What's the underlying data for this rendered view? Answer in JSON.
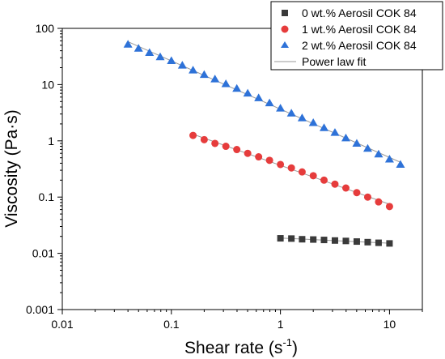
{
  "chart_data": {
    "type": "scatter",
    "title": "",
    "xlabel": "Shear rate (s⁻¹)",
    "xlabel_main": "Shear rate (s",
    "xlabel_sup": "-1",
    "xlabel_tail": ")",
    "ylabel": "Viscosity (Pa·s)",
    "xscale": "log",
    "yscale": "log",
    "xlim": [
      0.01,
      20
    ],
    "ylim": [
      0.001,
      100
    ],
    "xticks": [
      0.01,
      0.1,
      1,
      10
    ],
    "xtick_labels": [
      "0.01",
      "0.1",
      "1",
      "10"
    ],
    "yticks": [
      0.001,
      0.01,
      0.1,
      1,
      10,
      100
    ],
    "ytick_labels": [
      "0.001",
      "0.01",
      "0.1",
      "1",
      "10",
      "100"
    ],
    "grid": false,
    "legend_position": "top-right",
    "series": [
      {
        "name": "0 wt.% Aerosil COK 84",
        "marker": "square",
        "color": "#3a3a3a",
        "x": [
          1.0,
          1.26,
          1.58,
          2.0,
          2.51,
          3.16,
          3.98,
          5.01,
          6.31,
          7.94,
          10.0
        ],
        "y": [
          0.0185,
          0.0183,
          0.0178,
          0.0176,
          0.0173,
          0.0169,
          0.0166,
          0.0162,
          0.0158,
          0.0154,
          0.015
        ]
      },
      {
        "name": "1 wt.% Aerosil COK 84",
        "marker": "circle",
        "color": "#e63c3c",
        "x": [
          0.158,
          0.2,
          0.251,
          0.316,
          0.398,
          0.501,
          0.631,
          0.794,
          1.0,
          1.26,
          1.58,
          2.0,
          2.51,
          3.16,
          3.98,
          5.01,
          6.31,
          7.94,
          10.0
        ],
        "y": [
          1.25,
          1.05,
          0.9,
          0.8,
          0.7,
          0.6,
          0.52,
          0.45,
          0.38,
          0.33,
          0.28,
          0.24,
          0.2,
          0.17,
          0.145,
          0.12,
          0.1,
          0.082,
          0.068
        ]
      },
      {
        "name": "2 wt.% Aerosil COK 84",
        "marker": "triangle",
        "color": "#2e72d8",
        "x": [
          0.04,
          0.05,
          0.063,
          0.079,
          0.1,
          0.126,
          0.158,
          0.2,
          0.251,
          0.316,
          0.398,
          0.501,
          0.631,
          0.794,
          1.0,
          1.26,
          1.58,
          2.0,
          2.51,
          3.16,
          3.98,
          5.01,
          6.31,
          7.94,
          10.0,
          12.6
        ],
        "y": [
          52,
          44,
          37,
          31,
          26.5,
          22,
          18,
          15,
          12.5,
          10.3,
          8.5,
          7.0,
          5.8,
          4.7,
          3.8,
          3.1,
          2.55,
          2.1,
          1.7,
          1.4,
          1.12,
          0.9,
          0.73,
          0.58,
          0.47,
          0.38
        ]
      },
      {
        "name": "Power law fit",
        "marker": "line",
        "color": "#9a9a9a"
      }
    ]
  }
}
